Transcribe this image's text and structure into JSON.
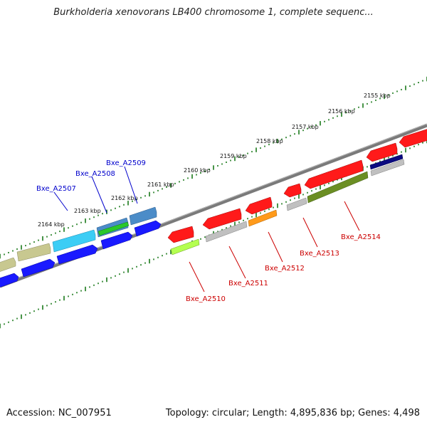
{
  "title": "Burkholderia xenovorans LB400 chromosome 1, complete sequenc...",
  "footer": {
    "accession": "Accession: NC_007951",
    "summary": "Topology: circular; Length: 4,895,836 bp; Genes: 4,498"
  },
  "colors": {
    "axis": "#808080",
    "ruler": "#1a7a1a",
    "forward_label": "#0000cc",
    "reverse_label": "#cc0000"
  },
  "ruler_ticks": [
    {
      "id": "2155",
      "label": "2155 kbp"
    },
    {
      "id": "2156",
      "label": "2156 kbp"
    },
    {
      "id": "2157",
      "label": "2157 kbp"
    },
    {
      "id": "2158",
      "label": "2158 kbp"
    },
    {
      "id": "2159",
      "label": "2159 kbp"
    },
    {
      "id": "2160",
      "label": "2160 kbp"
    },
    {
      "id": "2161",
      "label": "2161 kbp"
    },
    {
      "id": "2162",
      "label": "2162 kbp"
    },
    {
      "id": "2163",
      "label": "2163 kbp"
    },
    {
      "id": "2164",
      "label": "2164 kbp"
    }
  ],
  "genes": [
    {
      "id": "Bxe_A2507",
      "label": "Bxe_A2507",
      "strand": "forward"
    },
    {
      "id": "Bxe_A2508",
      "label": "Bxe_A2508",
      "strand": "forward"
    },
    {
      "id": "Bxe_A2509",
      "label": "Bxe_A2509",
      "strand": "forward"
    },
    {
      "id": "Bxe_A2510",
      "label": "Bxe_A2510",
      "strand": "reverse"
    },
    {
      "id": "Bxe_A2511",
      "label": "Bxe_A2511",
      "strand": "reverse"
    },
    {
      "id": "Bxe_A2512",
      "label": "Bxe_A2512",
      "strand": "reverse"
    },
    {
      "id": "Bxe_A2513",
      "label": "Bxe_A2513",
      "strand": "reverse"
    },
    {
      "id": "Bxe_A2514",
      "label": "Bxe_A2514",
      "strand": "reverse"
    }
  ],
  "feature_colors": [
    "#c8c890",
    "#1a1aff",
    "#3ccdf5",
    "#4b8cc8",
    "#ff1a1a",
    "#b4ff50",
    "#c0c0c0",
    "#ff9a1a",
    "#6b8e23",
    "#0a0a80"
  ]
}
